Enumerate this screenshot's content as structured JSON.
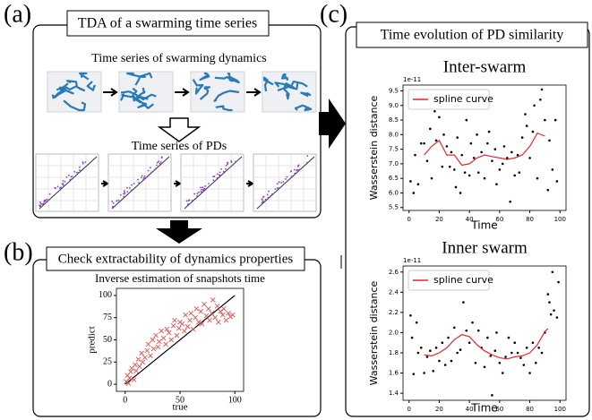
{
  "panel_a": {
    "label": "(a)",
    "title": "TDA of a swarming time series",
    "row1_title": "Time series of swarming dynamics",
    "row2_title": "Time series of PDs"
  },
  "panel_b": {
    "label": "(b)",
    "title": "Check extractability of dynamics properties"
  },
  "panel_c": {
    "label": "(c)",
    "title": "Time evolution of PD similarity"
  },
  "chart_data": [
    {
      "type": "scatter",
      "title": "Inverse estimation of snapshots time",
      "x_label": "true",
      "y_label": "predict",
      "xlim": [
        -8,
        108
      ],
      "ylim": [
        -8,
        108
      ],
      "xticks": [
        0,
        50,
        100
      ],
      "yticks": [
        0,
        25,
        50,
        75,
        100
      ],
      "series": [
        {
          "color": "#e05050",
          "marker": "x",
          "x": [
            1,
            2,
            3,
            4,
            5,
            6,
            8,
            9,
            10,
            12,
            13,
            15,
            16,
            18,
            20,
            21,
            23,
            25,
            26,
            28,
            30,
            31,
            33,
            35,
            37,
            38,
            40,
            42,
            44,
            45,
            47,
            49,
            50,
            52,
            54,
            55,
            57,
            59,
            60,
            62,
            64,
            65,
            67,
            69,
            70,
            72,
            74,
            76,
            77,
            79,
            80,
            82,
            84,
            85,
            87,
            89,
            90,
            92,
            94,
            96,
            98
          ],
          "values": [
            3,
            10,
            1,
            7,
            14,
            18,
            5,
            22,
            15,
            28,
            20,
            35,
            25,
            30,
            38,
            45,
            32,
            50,
            40,
            55,
            42,
            48,
            60,
            52,
            45,
            62,
            58,
            50,
            66,
            72,
            55,
            63,
            70,
            68,
            60,
            78,
            65,
            72,
            80,
            62,
            75,
            85,
            70,
            82,
            68,
            90,
            77,
            85,
            72,
            80,
            95,
            75,
            88,
            70,
            82,
            78,
            85,
            72,
            80,
            76,
            78
          ]
        }
      ]
    },
    {
      "type": "scatter",
      "title": "Inter-swarm",
      "x_label": "Time",
      "y_label": "Wasserstein distance",
      "offset_label": "1e-11",
      "xlim": [
        -4,
        104
      ],
      "ylim": [
        5.4,
        9.7
      ],
      "xticks": [
        0,
        20,
        40,
        60,
        80,
        100
      ],
      "yticks": [
        5.5,
        {
          "value": 6,
          "label": "6.0"
        },
        6.5,
        {
          "value": 7,
          "label": "7.0"
        },
        7.5,
        {
          "value": 8,
          "label": "8.0"
        },
        8.5,
        {
          "value": 9,
          "label": "9.0"
        },
        9.5
      ],
      "legend": "upper left",
      "series": [
        {
          "color": "#000000",
          "marker": "dot",
          "x": [
            1,
            3,
            4,
            6,
            8,
            10,
            12,
            14,
            15,
            17,
            18,
            20,
            22,
            23,
            25,
            27,
            28,
            30,
            31,
            32,
            34,
            35,
            37,
            38,
            40,
            41,
            43,
            45,
            46,
            48,
            50,
            52,
            53,
            55,
            57,
            58,
            60,
            62,
            63,
            65,
            67,
            68,
            70,
            72,
            73,
            75,
            77,
            78,
            80,
            82,
            83,
            85,
            87,
            88,
            90,
            92,
            93,
            95,
            97,
            98
          ],
          "values": [
            6.4,
            6.0,
            7.3,
            6.3,
            7.7,
            7.7,
            7.1,
            8.2,
            6.5,
            8.8,
            7.8,
            8.6,
            6.9,
            8.0,
            7.6,
            6.9,
            7.4,
            6.8,
            6.2,
            7.9,
            6.0,
            7.3,
            6.7,
            8.5,
            6.6,
            7.7,
            7.2,
            8.0,
            6.7,
            7.4,
            6.5,
            7.7,
            8.1,
            7.1,
            7.5,
            6.3,
            6.8,
            7.0,
            7.6,
            7.2,
            5.7,
            7.4,
            6.6,
            7.3,
            6.7,
            7.9,
            8.7,
            8.3,
            7.2,
            8.1,
            9.0,
            6.5,
            9.2,
            9.55,
            8.5,
            6.1,
            7.8,
            6.8,
            8.5,
            6.4
          ]
        },
        {
          "name": "spline curve",
          "color": "#e8252a",
          "marker": "line",
          "x": [
            10,
            15,
            20,
            25,
            30,
            35,
            40,
            45,
            50,
            55,
            60,
            65,
            70,
            75,
            80,
            85,
            90
          ],
          "values": [
            7.3,
            7.6,
            7.8,
            7.3,
            7.3,
            6.95,
            7.0,
            7.2,
            7.3,
            7.25,
            7.2,
            7.15,
            7.2,
            7.3,
            7.6,
            8.05,
            7.95
          ]
        }
      ]
    },
    {
      "type": "scatter",
      "title": "Inner swarm",
      "x_label": "Time",
      "y_label": "Wasserstein distance",
      "offset_label": "1e-11",
      "xlim": [
        -4,
        104
      ],
      "ylim": [
        1.33,
        2.66
      ],
      "xticks": [
        0,
        20,
        40,
        60,
        80,
        100
      ],
      "yticks": [
        1.4,
        1.6,
        1.8,
        {
          "value": 2,
          "label": "2.0"
        },
        2.2,
        2.4,
        2.6
      ],
      "legend": "upper left",
      "series": [
        {
          "color": "#000000",
          "marker": "dot",
          "x": [
            1,
            2,
            3,
            5,
            6,
            8,
            10,
            12,
            14,
            16,
            18,
            20,
            22,
            24,
            26,
            28,
            30,
            32,
            34,
            36,
            38,
            40,
            42,
            44,
            46,
            48,
            50,
            52,
            54,
            55,
            57,
            58,
            60,
            62,
            64,
            66,
            68,
            70,
            72,
            74,
            76,
            78,
            80,
            82,
            84,
            86,
            88,
            90,
            92,
            93,
            94,
            95,
            96,
            98,
            99
          ],
          "values": [
            2.17,
            1.95,
            1.59,
            2.1,
            1.8,
            1.85,
            1.6,
            1.76,
            1.82,
            1.62,
            1.85,
            1.72,
            1.9,
            1.68,
            1.95,
            1.72,
            2.05,
            1.8,
            1.83,
            2.3,
            2.02,
            1.9,
            2.1,
            1.7,
            2.02,
            1.85,
            1.66,
            1.95,
            1.77,
            1.38,
            1.82,
            2.0,
            1.7,
            1.6,
            1.76,
            1.95,
            1.8,
            1.9,
            1.8,
            1.75,
            1.68,
            1.85,
            1.6,
            1.9,
            1.7,
            1.85,
            1.8,
            2.0,
            2.38,
            2.3,
            2.18,
            2.6,
            2.22,
            2.15,
            2.5
          ]
        },
        {
          "name": "spline curve",
          "color": "#e8252a",
          "marker": "line",
          "x": [
            10,
            15,
            20,
            25,
            30,
            35,
            40,
            45,
            50,
            55,
            60,
            65,
            70,
            75,
            80,
            85,
            90,
            92
          ],
          "values": [
            1.78,
            1.77,
            1.8,
            1.85,
            1.93,
            1.98,
            1.96,
            1.88,
            1.82,
            1.78,
            1.75,
            1.74,
            1.76,
            1.77,
            1.8,
            1.88,
            2.01,
            2.04
          ]
        }
      ]
    }
  ]
}
